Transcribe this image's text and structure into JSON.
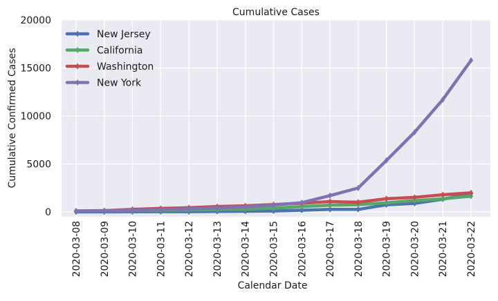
{
  "chart_data": {
    "type": "line",
    "title": "Cumulative Cases",
    "xlabel": "Calendar Date",
    "ylabel": "Cumulative Confirmed Cases",
    "categories": [
      "2020-03-08",
      "2020-03-09",
      "2020-03-10",
      "2020-03-11",
      "2020-03-12",
      "2020-03-13",
      "2020-03-14",
      "2020-03-15",
      "2020-03-16",
      "2020-03-17",
      "2020-03-18",
      "2020-03-19",
      "2020-03-20",
      "2020-03-21",
      "2020-03-22"
    ],
    "ylim": [
      0,
      20000
    ],
    "yticks": [
      0,
      5000,
      10000,
      15000,
      20000
    ],
    "grid": true,
    "legend_position": "top-left",
    "series": [
      {
        "name": "New Jersey",
        "color": "#4c72b0",
        "values": [
          6,
          11,
          15,
          23,
          29,
          50,
          69,
          98,
          178,
          267,
          267,
          742,
          890,
          1327,
          1914
        ]
      },
      {
        "name": "California",
        "color": "#55a868",
        "values": [
          88,
          114,
          133,
          157,
          202,
          252,
          293,
          392,
          557,
          698,
          751,
          952,
          1177,
          1364,
          1642
        ]
      },
      {
        "name": "Washington",
        "color": "#c44e52",
        "values": [
          102,
          136,
          267,
          366,
          442,
          568,
          642,
          769,
          904,
          1076,
          1014,
          1376,
          1524,
          1793,
          1996
        ]
      },
      {
        "name": "New York",
        "color": "#8172b2",
        "values": [
          105,
          142,
          173,
          220,
          328,
          421,
          525,
          732,
          967,
          1706,
          2495,
          5365,
          8310,
          11710,
          15800
        ]
      }
    ]
  }
}
